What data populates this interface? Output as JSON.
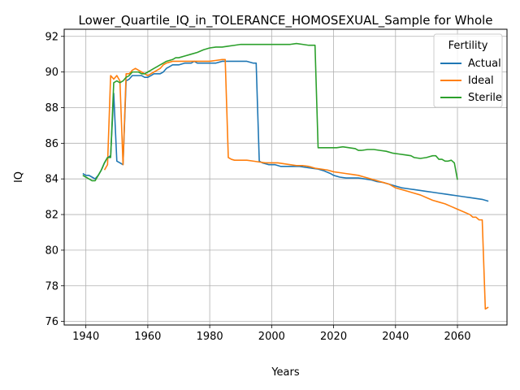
{
  "chart_data": {
    "type": "line",
    "title": "Lower_Quartile_IQ_in_TOLERANCE_HOMOSEXUAL_Sample for Whole",
    "xlabel": "Years",
    "ylabel": "IQ",
    "xlim": [
      1933,
      2076
    ],
    "ylim": [
      75.8,
      92.4
    ],
    "xticks": [
      1940,
      1960,
      1980,
      2000,
      2020,
      2040,
      2060
    ],
    "yticks": [
      76,
      78,
      80,
      82,
      84,
      86,
      88,
      90,
      92
    ],
    "grid": true,
    "legend": {
      "title": "Fertility",
      "placement": "top-right"
    },
    "series": [
      {
        "name": "Actual",
        "color": "#1f77b4",
        "points": [
          [
            1939,
            84.3
          ],
          [
            1940,
            84.2
          ],
          [
            1941,
            84.2
          ],
          [
            1942,
            84.1
          ],
          [
            1943,
            84.0
          ],
          [
            1944,
            84.2
          ],
          [
            1945,
            84.5
          ],
          [
            1946,
            84.9
          ],
          [
            1947,
            85.2
          ],
          [
            1948,
            85.3
          ],
          [
            1949,
            88.8
          ],
          [
            1950,
            85.0
          ],
          [
            1951,
            84.9
          ],
          [
            1952,
            84.8
          ],
          [
            1953,
            89.5
          ],
          [
            1954,
            89.6
          ],
          [
            1955,
            89.8
          ],
          [
            1956,
            89.8
          ],
          [
            1957,
            89.8
          ],
          [
            1958,
            89.8
          ],
          [
            1959,
            89.7
          ],
          [
            1960,
            89.7
          ],
          [
            1961,
            89.8
          ],
          [
            1962,
            89.9
          ],
          [
            1963,
            89.9
          ],
          [
            1964,
            89.9
          ],
          [
            1965,
            90.0
          ],
          [
            1966,
            90.2
          ],
          [
            1967,
            90.3
          ],
          [
            1968,
            90.4
          ],
          [
            1969,
            90.4
          ],
          [
            1970,
            90.4
          ],
          [
            1972,
            90.5
          ],
          [
            1974,
            90.5
          ],
          [
            1975,
            90.6
          ],
          [
            1976,
            90.5
          ],
          [
            1978,
            90.5
          ],
          [
            1980,
            90.5
          ],
          [
            1982,
            90.5
          ],
          [
            1984,
            90.6
          ],
          [
            1986,
            90.6
          ],
          [
            1988,
            90.6
          ],
          [
            1990,
            90.6
          ],
          [
            1992,
            90.6
          ],
          [
            1994,
            90.5
          ],
          [
            1995,
            90.5
          ],
          [
            1996,
            85.0
          ],
          [
            1997,
            84.9
          ],
          [
            1999,
            84.8
          ],
          [
            2001,
            84.8
          ],
          [
            2003,
            84.7
          ],
          [
            2005,
            84.7
          ],
          [
            2007,
            84.7
          ],
          [
            2009,
            84.7
          ],
          [
            2011,
            84.65
          ],
          [
            2013,
            84.6
          ],
          [
            2015,
            84.55
          ],
          [
            2017,
            84.45
          ],
          [
            2019,
            84.3
          ],
          [
            2020,
            84.2
          ],
          [
            2022,
            84.1
          ],
          [
            2024,
            84.05
          ],
          [
            2026,
            84.05
          ],
          [
            2028,
            84.05
          ],
          [
            2030,
            84.0
          ],
          [
            2032,
            83.95
          ],
          [
            2034,
            83.85
          ],
          [
            2036,
            83.8
          ],
          [
            2038,
            83.7
          ],
          [
            2040,
            83.6
          ],
          [
            2042,
            83.5
          ],
          [
            2044,
            83.45
          ],
          [
            2046,
            83.4
          ],
          [
            2048,
            83.35
          ],
          [
            2050,
            83.3
          ],
          [
            2052,
            83.25
          ],
          [
            2054,
            83.2
          ],
          [
            2056,
            83.15
          ],
          [
            2058,
            83.1
          ],
          [
            2060,
            83.05
          ],
          [
            2062,
            83.0
          ],
          [
            2064,
            82.95
          ],
          [
            2066,
            82.9
          ],
          [
            2068,
            82.85
          ],
          [
            2069,
            82.8
          ],
          [
            2070,
            82.75
          ]
        ]
      },
      {
        "name": "Ideal",
        "color": "#ff7f0e",
        "points": [
          [
            1946,
            84.5
          ],
          [
            1947,
            84.8
          ],
          [
            1948,
            89.8
          ],
          [
            1949,
            89.6
          ],
          [
            1950,
            89.8
          ],
          [
            1951,
            89.5
          ],
          [
            1952,
            84.8
          ],
          [
            1953,
            89.9
          ],
          [
            1954,
            89.9
          ],
          [
            1955,
            90.1
          ],
          [
            1956,
            90.2
          ],
          [
            1957,
            90.1
          ],
          [
            1958,
            90.0
          ],
          [
            1959,
            89.9
          ],
          [
            1960,
            89.8
          ],
          [
            1961,
            89.9
          ],
          [
            1962,
            90.0
          ],
          [
            1963,
            90.1
          ],
          [
            1964,
            90.2
          ],
          [
            1965,
            90.4
          ],
          [
            1966,
            90.5
          ],
          [
            1967,
            90.55
          ],
          [
            1968,
            90.6
          ],
          [
            1970,
            90.6
          ],
          [
            1972,
            90.6
          ],
          [
            1974,
            90.6
          ],
          [
            1976,
            90.6
          ],
          [
            1978,
            90.6
          ],
          [
            1980,
            90.6
          ],
          [
            1982,
            90.65
          ],
          [
            1984,
            90.7
          ],
          [
            1985,
            90.7
          ],
          [
            1986,
            85.2
          ],
          [
            1987,
            85.1
          ],
          [
            1988,
            85.05
          ],
          [
            1990,
            85.05
          ],
          [
            1992,
            85.05
          ],
          [
            1994,
            85.0
          ],
          [
            1996,
            84.95
          ],
          [
            1998,
            84.9
          ],
          [
            2000,
            84.9
          ],
          [
            2002,
            84.9
          ],
          [
            2004,
            84.85
          ],
          [
            2006,
            84.8
          ],
          [
            2008,
            84.75
          ],
          [
            2010,
            84.75
          ],
          [
            2012,
            84.7
          ],
          [
            2014,
            84.6
          ],
          [
            2016,
            84.55
          ],
          [
            2018,
            84.5
          ],
          [
            2020,
            84.4
          ],
          [
            2022,
            84.35
          ],
          [
            2024,
            84.3
          ],
          [
            2026,
            84.25
          ],
          [
            2028,
            84.2
          ],
          [
            2030,
            84.1
          ],
          [
            2032,
            84.0
          ],
          [
            2034,
            83.9
          ],
          [
            2036,
            83.8
          ],
          [
            2038,
            83.7
          ],
          [
            2040,
            83.5
          ],
          [
            2042,
            83.4
          ],
          [
            2044,
            83.3
          ],
          [
            2046,
            83.2
          ],
          [
            2048,
            83.1
          ],
          [
            2050,
            82.95
          ],
          [
            2052,
            82.8
          ],
          [
            2054,
            82.7
          ],
          [
            2056,
            82.6
          ],
          [
            2058,
            82.45
          ],
          [
            2060,
            82.3
          ],
          [
            2062,
            82.15
          ],
          [
            2064,
            82.0
          ],
          [
            2065,
            81.85
          ],
          [
            2066,
            81.85
          ],
          [
            2067,
            81.7
          ],
          [
            2068,
            81.7
          ],
          [
            2069,
            76.7
          ],
          [
            2070,
            76.8
          ]
        ]
      },
      {
        "name": "Sterile",
        "color": "#2ca02c",
        "points": [
          [
            1939,
            84.2
          ],
          [
            1940,
            84.1
          ],
          [
            1941,
            84.0
          ],
          [
            1942,
            83.9
          ],
          [
            1943,
            83.9
          ],
          [
            1944,
            84.2
          ],
          [
            1945,
            84.5
          ],
          [
            1946,
            84.9
          ],
          [
            1947,
            85.2
          ],
          [
            1948,
            85.2
          ],
          [
            1949,
            89.4
          ],
          [
            1950,
            89.5
          ],
          [
            1951,
            89.4
          ],
          [
            1952,
            89.5
          ],
          [
            1953,
            89.7
          ],
          [
            1954,
            89.8
          ],
          [
            1955,
            90.0
          ],
          [
            1956,
            90.0
          ],
          [
            1957,
            90.0
          ],
          [
            1958,
            89.9
          ],
          [
            1959,
            89.9
          ],
          [
            1960,
            90.0
          ],
          [
            1961,
            90.1
          ],
          [
            1962,
            90.2
          ],
          [
            1963,
            90.3
          ],
          [
            1964,
            90.4
          ],
          [
            1965,
            90.5
          ],
          [
            1966,
            90.6
          ],
          [
            1967,
            90.65
          ],
          [
            1968,
            90.7
          ],
          [
            1969,
            90.8
          ],
          [
            1970,
            90.8
          ],
          [
            1972,
            90.9
          ],
          [
            1974,
            91.0
          ],
          [
            1976,
            91.1
          ],
          [
            1978,
            91.25
          ],
          [
            1980,
            91.35
          ],
          [
            1982,
            91.4
          ],
          [
            1984,
            91.4
          ],
          [
            1986,
            91.45
          ],
          [
            1988,
            91.5
          ],
          [
            1990,
            91.55
          ],
          [
            1992,
            91.55
          ],
          [
            1994,
            91.55
          ],
          [
            1996,
            91.55
          ],
          [
            1998,
            91.55
          ],
          [
            2000,
            91.55
          ],
          [
            2002,
            91.55
          ],
          [
            2004,
            91.55
          ],
          [
            2006,
            91.55
          ],
          [
            2008,
            91.6
          ],
          [
            2010,
            91.55
          ],
          [
            2012,
            91.5
          ],
          [
            2014,
            91.5
          ],
          [
            2015,
            85.75
          ],
          [
            2017,
            85.75
          ],
          [
            2019,
            85.75
          ],
          [
            2021,
            85.75
          ],
          [
            2023,
            85.8
          ],
          [
            2025,
            85.75
          ],
          [
            2027,
            85.7
          ],
          [
            2028,
            85.6
          ],
          [
            2029,
            85.6
          ],
          [
            2031,
            85.65
          ],
          [
            2033,
            85.65
          ],
          [
            2035,
            85.6
          ],
          [
            2037,
            85.55
          ],
          [
            2039,
            85.45
          ],
          [
            2041,
            85.4
          ],
          [
            2043,
            85.35
          ],
          [
            2045,
            85.3
          ],
          [
            2046,
            85.2
          ],
          [
            2048,
            85.15
          ],
          [
            2050,
            85.2
          ],
          [
            2051,
            85.25
          ],
          [
            2052,
            85.3
          ],
          [
            2053,
            85.3
          ],
          [
            2054,
            85.1
          ],
          [
            2055,
            85.1
          ],
          [
            2056,
            85.0
          ],
          [
            2057,
            85.0
          ],
          [
            2058,
            85.05
          ],
          [
            2059,
            84.9
          ],
          [
            2060,
            83.95
          ]
        ]
      }
    ]
  }
}
